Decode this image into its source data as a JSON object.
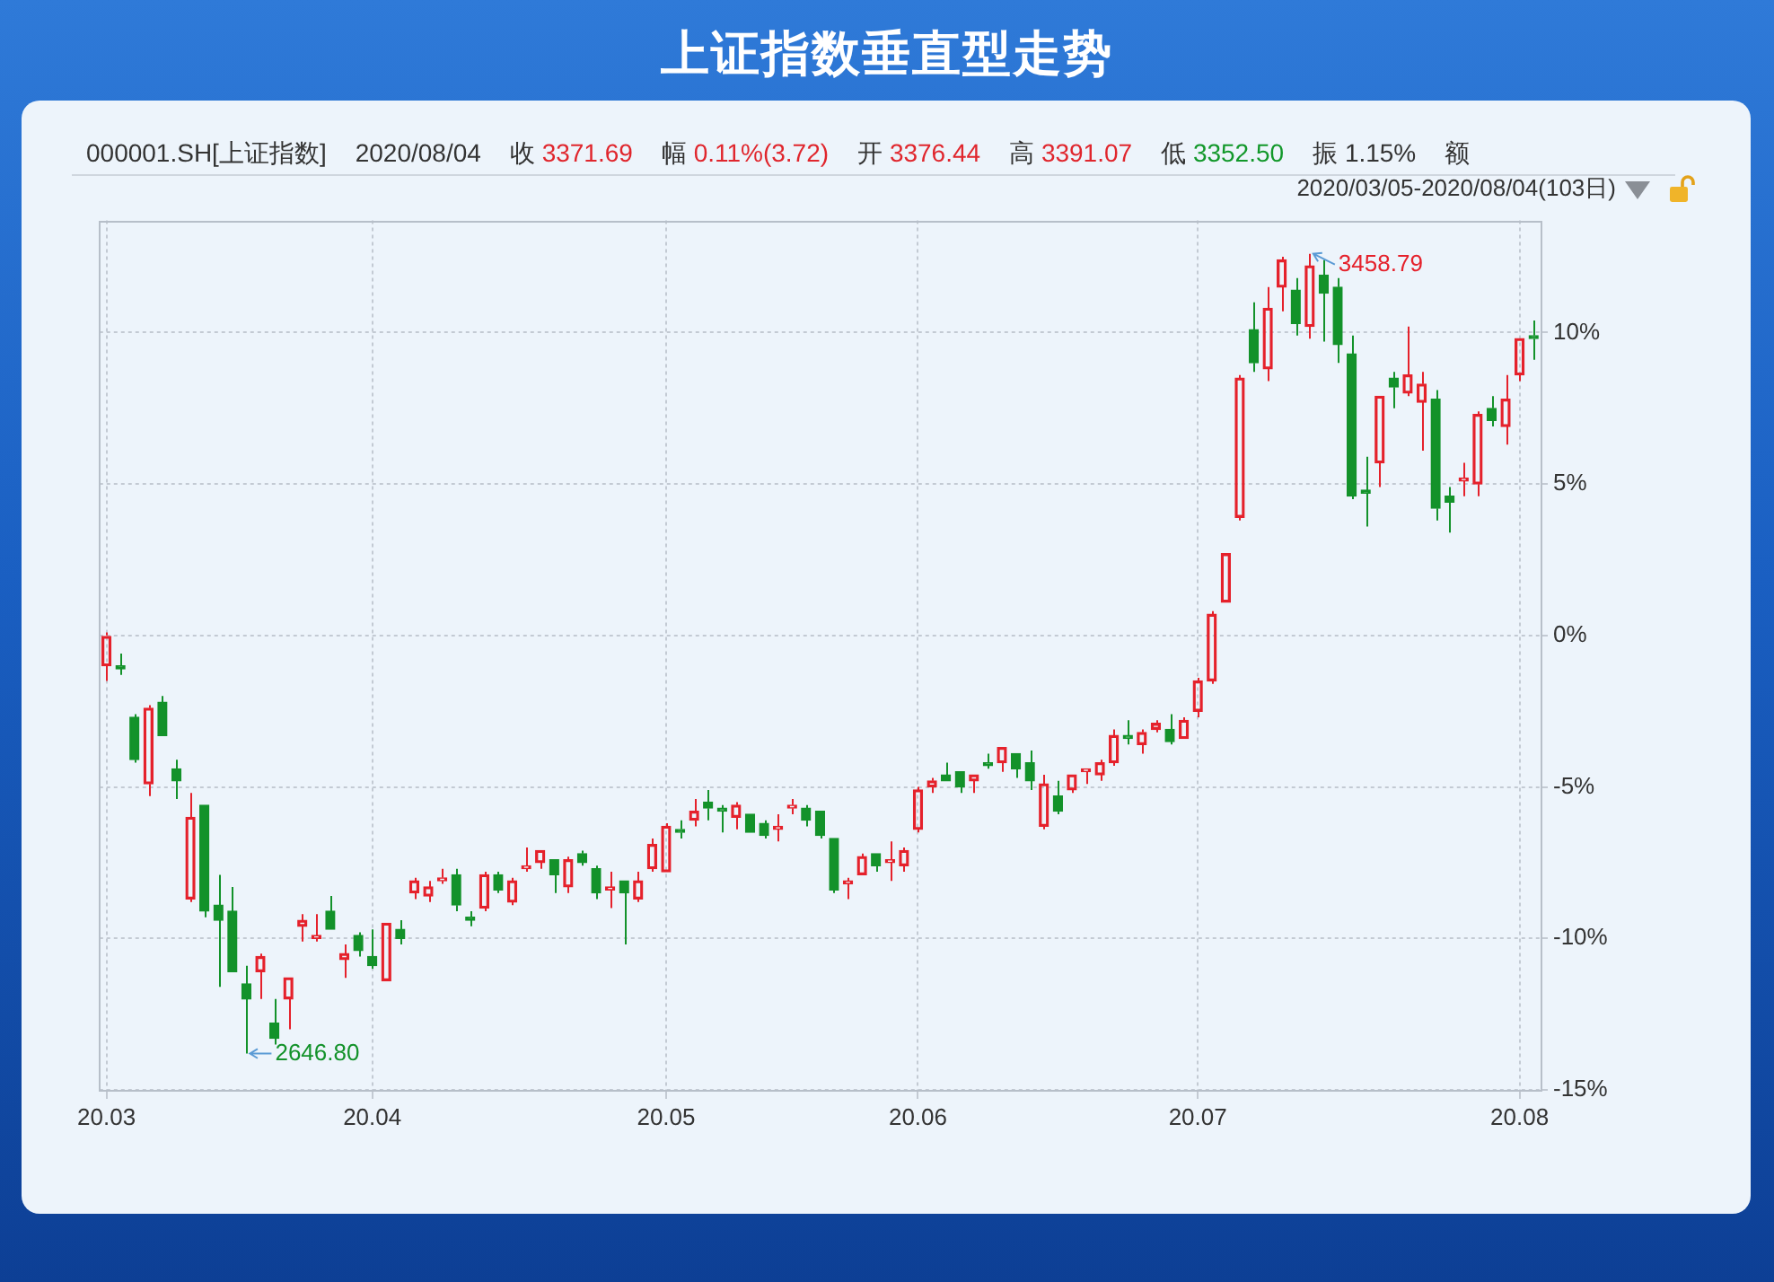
{
  "chart_data": {
    "type": "candlestick",
    "title": "上证指数垂直型走势",
    "annotations": [
      "000001.SH[上证指数]",
      "2020/08/04",
      "收 3371.69",
      "幅 0.11%(3.72)",
      "开 3376.44",
      "高 3391.07",
      "低 3352.50",
      "振 1.15%",
      "额",
      "2020/03/05-2020/08/04(103日)",
      "3458.79",
      "2646.80"
    ],
    "categories": [
      "20.03",
      null,
      null,
      null,
      null,
      null,
      null,
      null,
      null,
      null,
      null,
      null,
      null,
      null,
      null,
      null,
      null,
      null,
      null,
      "20.04",
      null,
      null,
      null,
      null,
      null,
      null,
      null,
      null,
      null,
      null,
      null,
      null,
      null,
      null,
      null,
      null,
      null,
      null,
      null,
      null,
      "20.05",
      null,
      null,
      null,
      null,
      null,
      null,
      null,
      null,
      null,
      null,
      null,
      null,
      null,
      null,
      null,
      null,
      null,
      "20.06",
      null,
      null,
      null,
      null,
      null,
      null,
      null,
      null,
      null,
      null,
      null,
      null,
      null,
      null,
      null,
      null,
      null,
      null,
      null,
      "20.07",
      null,
      null,
      null,
      null,
      null,
      null,
      null,
      null,
      null,
      null,
      null,
      null,
      null,
      null,
      null,
      null,
      null,
      null,
      null,
      null,
      null,
      null,
      "20.08",
      null
    ],
    "ohlc": [
      [
        -1.0,
        0.1,
        -1.5,
        0.0
      ],
      [
        -1.0,
        -0.6,
        -1.3,
        -1.1
      ],
      [
        -2.7,
        -2.6,
        -4.2,
        -4.1
      ],
      [
        -4.9,
        -2.3,
        -5.3,
        -2.4
      ],
      [
        -2.2,
        -2.0,
        -3.3,
        -3.3
      ],
      [
        -4.4,
        -4.1,
        -5.4,
        -4.8
      ],
      [
        -8.7,
        -5.2,
        -8.8,
        -6.0
      ],
      [
        -5.6,
        -5.6,
        -9.3,
        -9.1
      ],
      [
        -8.9,
        -7.9,
        -11.6,
        -9.4
      ],
      [
        -9.1,
        -8.3,
        -11.1,
        -11.1
      ],
      [
        -11.5,
        -10.9,
        -13.8,
        -12.0
      ],
      [
        -11.1,
        -10.5,
        -12.0,
        -10.6
      ],
      [
        -12.8,
        -12.0,
        -13.5,
        -13.3
      ],
      [
        -12.0,
        -11.3,
        -13.0,
        -11.3
      ],
      [
        -9.6,
        -9.2,
        -10.1,
        -9.4
      ],
      [
        -10.0,
        -9.2,
        -10.1,
        -9.9
      ],
      [
        -9.1,
        -8.6,
        -9.7,
        -9.7
      ],
      [
        -10.7,
        -10.2,
        -11.3,
        -10.5
      ],
      [
        -9.9,
        -9.8,
        -10.6,
        -10.4
      ],
      [
        -10.6,
        -9.7,
        -11.0,
        -10.9
      ],
      [
        -11.4,
        -9.5,
        -11.4,
        -9.5
      ],
      [
        -9.7,
        -9.4,
        -10.2,
        -10.0
      ],
      [
        -8.5,
        -8.0,
        -8.7,
        -8.1
      ],
      [
        -8.6,
        -8.1,
        -8.8,
        -8.3
      ],
      [
        -8.1,
        -7.7,
        -8.2,
        -8.0
      ],
      [
        -7.9,
        -7.7,
        -9.1,
        -8.9
      ],
      [
        -9.3,
        -9.1,
        -9.6,
        -9.4
      ],
      [
        -9.0,
        -7.8,
        -9.1,
        -7.9
      ],
      [
        -7.9,
        -7.8,
        -8.5,
        -8.4
      ],
      [
        -8.8,
        -8.0,
        -8.9,
        -8.1
      ],
      [
        -7.7,
        -7.0,
        -7.8,
        -7.6
      ],
      [
        -7.5,
        -7.1,
        -7.7,
        -7.1
      ],
      [
        -7.4,
        -7.4,
        -8.5,
        -7.9
      ],
      [
        -8.3,
        -7.3,
        -8.5,
        -7.4
      ],
      [
        -7.2,
        -7.1,
        -7.6,
        -7.5
      ],
      [
        -7.7,
        -7.6,
        -8.7,
        -8.5
      ],
      [
        -8.4,
        -7.8,
        -9.0,
        -8.3
      ],
      [
        -8.1,
        -8.1,
        -10.2,
        -8.5
      ],
      [
        -8.7,
        -7.8,
        -8.8,
        -8.1
      ],
      [
        -7.7,
        -6.7,
        -7.8,
        -6.9
      ],
      [
        -7.8,
        -6.2,
        -7.8,
        -6.3
      ],
      [
        -6.4,
        -6.1,
        -6.7,
        -6.5
      ],
      [
        -6.1,
        -5.4,
        -6.3,
        -5.8
      ],
      [
        -5.5,
        -5.1,
        -6.1,
        -5.7
      ],
      [
        -5.7,
        -5.6,
        -6.5,
        -5.8
      ],
      [
        -6.0,
        -5.5,
        -6.4,
        -5.6
      ],
      [
        -5.9,
        -5.9,
        -6.5,
        -6.5
      ],
      [
        -6.2,
        -6.1,
        -6.7,
        -6.6
      ],
      [
        -6.4,
        -5.9,
        -6.8,
        -6.3
      ],
      [
        -5.7,
        -5.4,
        -5.9,
        -5.6
      ],
      [
        -5.7,
        -5.6,
        -6.3,
        -6.1
      ],
      [
        -5.8,
        -5.8,
        -6.7,
        -6.6
      ],
      [
        -6.7,
        -6.7,
        -8.5,
        -8.4
      ],
      [
        -8.2,
        -8.0,
        -8.7,
        -8.1
      ],
      [
        -7.9,
        -7.2,
        -7.9,
        -7.3
      ],
      [
        -7.2,
        -7.2,
        -7.8,
        -7.6
      ],
      [
        -7.5,
        -6.8,
        -8.1,
        -7.4
      ],
      [
        -7.6,
        -7.0,
        -7.8,
        -7.1
      ],
      [
        -6.4,
        -5.0,
        -6.5,
        -5.1
      ],
      [
        -5.0,
        -4.7,
        -5.2,
        -4.8
      ],
      [
        -4.6,
        -4.2,
        -4.8,
        -4.8
      ],
      [
        -4.5,
        -4.5,
        -5.2,
        -5.0
      ],
      [
        -4.8,
        -4.6,
        -5.2,
        -4.6
      ],
      [
        -4.2,
        -3.9,
        -4.4,
        -4.3
      ],
      [
        -4.2,
        -3.7,
        -4.5,
        -3.7
      ],
      [
        -3.9,
        -3.9,
        -4.7,
        -4.4
      ],
      [
        -4.2,
        -3.8,
        -5.1,
        -4.8
      ],
      [
        -6.3,
        -4.6,
        -6.4,
        -4.9
      ],
      [
        -5.3,
        -4.8,
        -5.9,
        -5.8
      ],
      [
        -5.1,
        -4.6,
        -5.2,
        -4.6
      ],
      [
        -4.5,
        -4.4,
        -4.9,
        -4.4
      ],
      [
        -4.6,
        -4.1,
        -4.8,
        -4.2
      ],
      [
        -4.2,
        -3.1,
        -4.3,
        -3.3
      ],
      [
        -3.3,
        -2.8,
        -3.6,
        -3.4
      ],
      [
        -3.6,
        -3.1,
        -3.9,
        -3.2
      ],
      [
        -3.1,
        -2.8,
        -3.2,
        -2.9
      ],
      [
        -3.1,
        -2.6,
        -3.6,
        -3.5
      ],
      [
        -3.4,
        -2.7,
        -3.4,
        -2.8
      ],
      [
        -2.5,
        -1.4,
        -2.7,
        -1.5
      ],
      [
        -1.5,
        0.8,
        -1.6,
        0.7
      ],
      [
        1.1,
        2.7,
        1.1,
        2.7
      ],
      [
        3.9,
        8.6,
        3.8,
        8.5
      ],
      [
        10.1,
        11.0,
        8.7,
        9.0
      ],
      [
        8.8,
        11.5,
        8.4,
        10.8
      ],
      [
        11.5,
        12.5,
        10.7,
        12.4
      ],
      [
        11.4,
        11.8,
        9.9,
        10.3
      ],
      [
        10.2,
        12.6,
        9.8,
        12.2
      ],
      [
        11.9,
        12.4,
        9.7,
        11.3
      ],
      [
        11.5,
        11.8,
        9.0,
        9.6
      ],
      [
        9.3,
        9.9,
        4.5,
        4.6
      ],
      [
        4.8,
        5.9,
        3.6,
        4.7
      ],
      [
        5.7,
        7.9,
        4.9,
        7.9
      ],
      [
        8.5,
        8.7,
        7.5,
        8.2
      ],
      [
        8.0,
        10.2,
        7.9,
        8.6
      ],
      [
        7.7,
        8.7,
        6.1,
        8.3
      ],
      [
        7.8,
        8.1,
        3.8,
        4.2
      ],
      [
        4.6,
        4.9,
        3.4,
        4.4
      ],
      [
        5.1,
        5.7,
        4.6,
        5.2
      ],
      [
        5.0,
        7.4,
        4.6,
        7.3
      ],
      [
        7.5,
        7.9,
        6.9,
        7.1
      ],
      [
        6.9,
        8.6,
        6.3,
        7.8
      ],
      [
        8.6,
        9.8,
        8.4,
        9.8
      ],
      [
        9.9,
        10.4,
        9.1,
        9.8
      ]
    ],
    "colors": [
      "#e5212b",
      "#13922a",
      "#13922a",
      "#e5212b",
      "#13922a",
      "#13922a",
      "#e5212b",
      "#13922a",
      "#13922a",
      "#13922a",
      "#13922a",
      "#e5212b",
      "#13922a",
      "#e5212b",
      "#e5212b",
      "#e5212b",
      "#13922a",
      "#e5212b",
      "#13922a",
      "#13922a",
      "#e5212b",
      "#13922a",
      "#e5212b",
      "#e5212b",
      "#e5212b",
      "#13922a",
      "#13922a",
      "#e5212b",
      "#13922a",
      "#e5212b",
      "#e5212b",
      "#e5212b",
      "#13922a",
      "#e5212b",
      "#13922a",
      "#13922a",
      "#e5212b",
      "#13922a",
      "#e5212b",
      "#e5212b",
      "#e5212b",
      "#13922a",
      "#e5212b",
      "#13922a",
      "#13922a",
      "#e5212b",
      "#13922a",
      "#13922a",
      "#e5212b",
      "#e5212b",
      "#13922a",
      "#13922a",
      "#13922a",
      "#e5212b",
      "#e5212b",
      "#13922a",
      "#e5212b",
      "#e5212b",
      "#e5212b",
      "#e5212b",
      "#13922a",
      "#13922a",
      "#e5212b",
      "#13922a",
      "#e5212b",
      "#13922a",
      "#13922a",
      "#e5212b",
      "#13922a",
      "#e5212b",
      "#e5212b",
      "#e5212b",
      "#e5212b",
      "#13922a",
      "#e5212b",
      "#e5212b",
      "#13922a",
      "#e5212b",
      "#e5212b",
      "#e5212b",
      "#e5212b",
      "#e5212b",
      "#13922a",
      "#e5212b",
      "#e5212b",
      "#13922a",
      "#e5212b",
      "#13922a",
      "#13922a",
      "#13922a",
      "#13922a",
      "#e5212b",
      "#13922a",
      "#e5212b",
      "#e5212b",
      "#13922a",
      "#13922a",
      "#e5212b",
      "#e5212b",
      "#13922a",
      "#e5212b",
      "#e5212b",
      "#13922a"
    ],
    "ylim": [
      -15,
      13.7
    ],
    "yticks": [
      {
        "value": -15,
        "label": "-15%"
      },
      {
        "value": -10,
        "label": "-10%"
      },
      {
        "value": -5,
        "label": "-5%"
      },
      {
        "value": 0,
        "label": "0%"
      },
      {
        "value": 5,
        "label": "5%"
      },
      {
        "value": 10,
        "label": "10%"
      }
    ],
    "grid": true
  }
}
